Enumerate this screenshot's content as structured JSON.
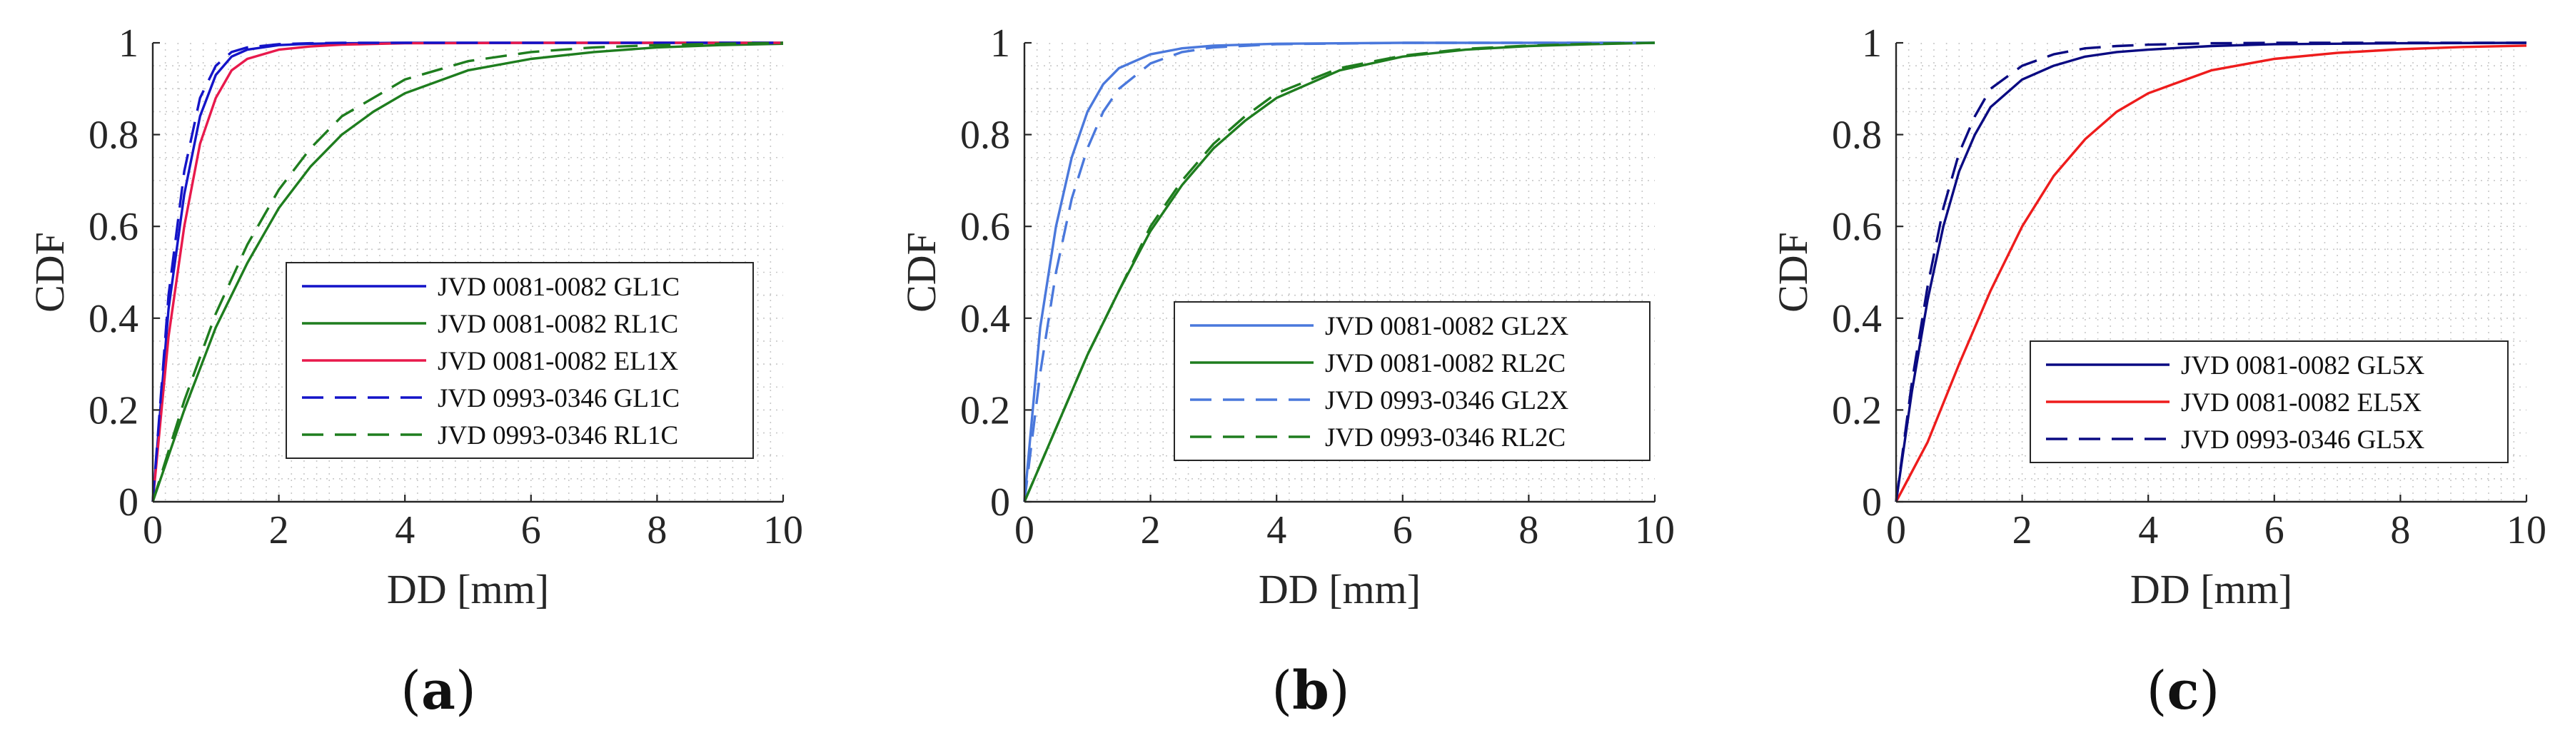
{
  "chart_data": [
    {
      "type": "line",
      "panel": "a",
      "caption": {
        "open": "(",
        "letter": "a",
        "close": ")"
      },
      "xlabel": "DD [mm]",
      "ylabel": "CDF",
      "xlim": [
        0,
        10
      ],
      "ylim": [
        0,
        1
      ],
      "xticks": [
        "0",
        "2",
        "4",
        "6",
        "8",
        "10"
      ],
      "yticks": [
        "0",
        "0.2",
        "0.4",
        "0.6",
        "0.8",
        "1"
      ],
      "grid": "dotted",
      "legend_position": "lower-right",
      "series": [
        {
          "name": "JVD 0081-0082 GL1C",
          "color": "#1414c8",
          "dash": "solid",
          "x": [
            0,
            0.25,
            0.5,
            0.75,
            1,
            1.25,
            1.5,
            2,
            2.5,
            3,
            4,
            6,
            8,
            10
          ],
          "y": [
            0,
            0.42,
            0.67,
            0.84,
            0.93,
            0.97,
            0.985,
            0.995,
            0.998,
            0.999,
            1,
            1,
            1,
            1
          ]
        },
        {
          "name": "JVD 0081-0082 RL1C",
          "color": "#1e7d1e",
          "dash": "solid",
          "x": [
            0,
            0.5,
            1,
            1.5,
            2,
            2.5,
            3,
            3.5,
            4,
            5,
            6,
            7,
            8,
            9,
            10
          ],
          "y": [
            0,
            0.2,
            0.38,
            0.52,
            0.64,
            0.73,
            0.8,
            0.85,
            0.89,
            0.94,
            0.965,
            0.98,
            0.99,
            0.995,
            0.998
          ]
        },
        {
          "name": "JVD 0081-0082 EL1X",
          "color": "#e8194c",
          "dash": "solid",
          "x": [
            0,
            0.25,
            0.5,
            0.75,
            1,
            1.25,
            1.5,
            2,
            2.5,
            3,
            4,
            6,
            8,
            10
          ],
          "y": [
            0,
            0.36,
            0.6,
            0.78,
            0.88,
            0.94,
            0.965,
            0.985,
            0.992,
            0.996,
            0.999,
            1,
            1,
            1
          ]
        },
        {
          "name": "JVD 0993-0346 GL1C",
          "color": "#1414c8",
          "dash": "dashed",
          "x": [
            0,
            0.25,
            0.5,
            0.75,
            1,
            1.25,
            1.5,
            2,
            2.5,
            3,
            4,
            6,
            8,
            10
          ],
          "y": [
            0,
            0.45,
            0.72,
            0.88,
            0.95,
            0.98,
            0.99,
            0.997,
            0.999,
            1,
            1,
            1,
            1,
            1
          ]
        },
        {
          "name": "JVD 0993-0346 RL1C",
          "color": "#1e7d1e",
          "dash": "dashed",
          "x": [
            0,
            0.5,
            1,
            1.5,
            2,
            2.5,
            3,
            3.5,
            4,
            5,
            6,
            7,
            8,
            9,
            10
          ],
          "y": [
            0,
            0.22,
            0.41,
            0.56,
            0.68,
            0.77,
            0.84,
            0.88,
            0.92,
            0.96,
            0.98,
            0.99,
            0.995,
            0.998,
            1
          ]
        }
      ]
    },
    {
      "type": "line",
      "panel": "b",
      "caption": {
        "open": "(",
        "letter": "b",
        "close": ")"
      },
      "xlabel": "DD [mm]",
      "ylabel": "CDF",
      "xlim": [
        0,
        10
      ],
      "ylim": [
        0,
        1
      ],
      "xticks": [
        "0",
        "2",
        "4",
        "6",
        "8",
        "10"
      ],
      "yticks": [
        "0",
        "0.2",
        "0.4",
        "0.6",
        "0.8",
        "1"
      ],
      "grid": "dotted",
      "legend_position": "lower-right",
      "series": [
        {
          "name": "JVD 0081-0082 GL2X",
          "color": "#4a78dc",
          "dash": "solid",
          "x": [
            0,
            0.25,
            0.5,
            0.75,
            1,
            1.25,
            1.5,
            2,
            2.5,
            3,
            4,
            6,
            8,
            10
          ],
          "y": [
            0,
            0.38,
            0.6,
            0.75,
            0.85,
            0.91,
            0.945,
            0.975,
            0.988,
            0.994,
            0.998,
            1,
            1,
            1
          ]
        },
        {
          "name": "JVD 0081-0082 RL2C",
          "color": "#1e7d1e",
          "dash": "solid",
          "x": [
            0,
            0.5,
            1,
            1.5,
            2,
            2.5,
            3,
            3.5,
            4,
            5,
            6,
            7,
            8,
            9,
            10
          ],
          "y": [
            0,
            0.16,
            0.32,
            0.46,
            0.59,
            0.69,
            0.77,
            0.83,
            0.88,
            0.94,
            0.97,
            0.985,
            0.993,
            0.997,
            1
          ]
        },
        {
          "name": "JVD 0993-0346 GL2X",
          "color": "#4a78dc",
          "dash": "dashed",
          "x": [
            0,
            0.25,
            0.5,
            0.75,
            1,
            1.25,
            1.5,
            2,
            2.5,
            3,
            4,
            6,
            8,
            10
          ],
          "y": [
            0,
            0.28,
            0.5,
            0.66,
            0.77,
            0.85,
            0.9,
            0.955,
            0.98,
            0.99,
            0.997,
            1,
            1,
            1
          ]
        },
        {
          "name": "JVD 0993-0346 RL2C",
          "color": "#1e7d1e",
          "dash": "dashed",
          "x": [
            0,
            0.5,
            1,
            1.5,
            2,
            2.5,
            3,
            3.5,
            4,
            5,
            6,
            7,
            8,
            9,
            10
          ],
          "y": [
            0,
            0.16,
            0.32,
            0.46,
            0.6,
            0.7,
            0.78,
            0.84,
            0.89,
            0.945,
            0.972,
            0.987,
            0.994,
            0.998,
            1
          ]
        }
      ]
    },
    {
      "type": "line",
      "panel": "c",
      "caption": {
        "open": "(",
        "letter": "c",
        "close": ")"
      },
      "xlabel": "DD [mm]",
      "ylabel": "CDF",
      "xlim": [
        0,
        10
      ],
      "ylim": [
        0,
        1
      ],
      "xticks": [
        "0",
        "2",
        "4",
        "6",
        "8",
        "10"
      ],
      "yticks": [
        "0",
        "0.2",
        "0.4",
        "0.6",
        "0.8",
        "1"
      ],
      "grid": "dotted",
      "legend_position": "lower-right",
      "series": [
        {
          "name": "JVD 0081-0082 GL5X",
          "color": "#0a0a82",
          "dash": "solid",
          "x": [
            0,
            0.25,
            0.5,
            0.75,
            1,
            1.25,
            1.5,
            2,
            2.5,
            3,
            3.5,
            4,
            5,
            6,
            8,
            10
          ],
          "y": [
            0,
            0.24,
            0.44,
            0.6,
            0.72,
            0.8,
            0.86,
            0.92,
            0.95,
            0.97,
            0.98,
            0.985,
            0.993,
            0.997,
            0.999,
            1
          ]
        },
        {
          "name": "JVD 0081-0082 EL5X",
          "color": "#ee1c1c",
          "dash": "solid",
          "x": [
            0,
            0.5,
            1,
            1.5,
            2,
            2.5,
            3,
            3.5,
            4,
            5,
            6,
            7,
            8,
            9,
            10
          ],
          "y": [
            0,
            0.13,
            0.3,
            0.46,
            0.6,
            0.71,
            0.79,
            0.85,
            0.89,
            0.94,
            0.965,
            0.978,
            0.986,
            0.991,
            0.994
          ]
        },
        {
          "name": "JVD 0993-0346 GL5X",
          "color": "#0a0a82",
          "dash": "dashed",
          "x": [
            0,
            0.25,
            0.5,
            0.75,
            1,
            1.25,
            1.5,
            2,
            2.5,
            3,
            3.5,
            4,
            5,
            6,
            8,
            10
          ],
          "y": [
            0,
            0.26,
            0.47,
            0.64,
            0.76,
            0.84,
            0.9,
            0.95,
            0.975,
            0.988,
            0.993,
            0.996,
            0.999,
            1,
            1,
            1
          ]
        }
      ]
    }
  ]
}
